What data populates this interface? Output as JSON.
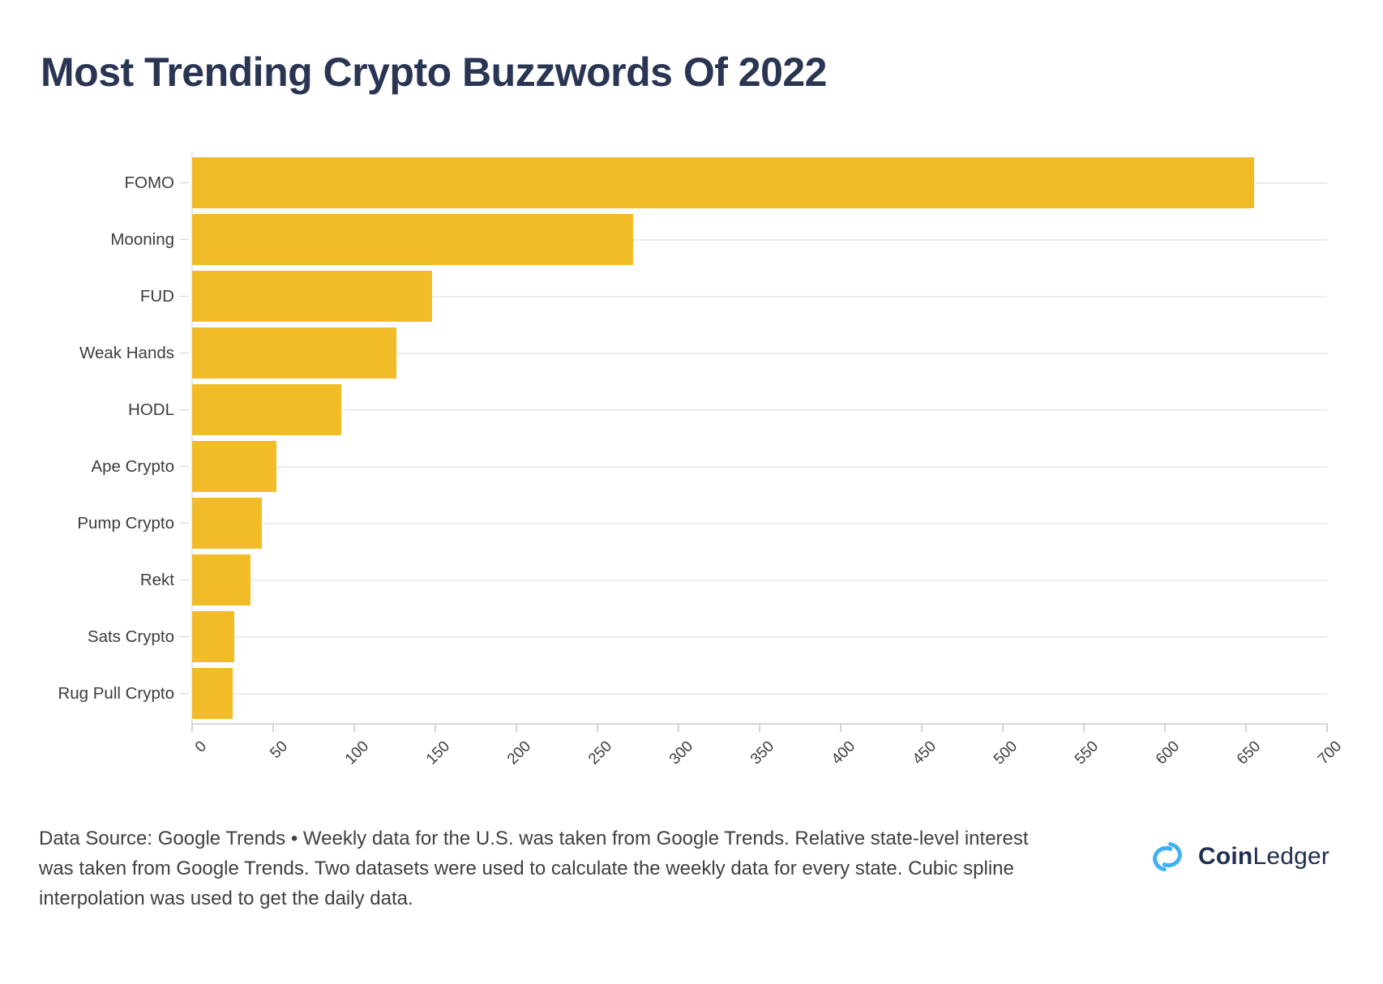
{
  "title": "Most Trending Crypto Buzzwords Of 2022",
  "chart_data": {
    "type": "bar",
    "orientation": "horizontal",
    "title": "Most Trending Crypto Buzzwords Of 2022",
    "categories": [
      "FOMO",
      "Mooning",
      "FUD",
      "Weak Hands",
      "HODL",
      "Ape Crypto",
      "Pump Crypto",
      "Rekt",
      "Sats Crypto",
      "Rug Pull Crypto"
    ],
    "values": [
      655,
      272,
      148,
      126,
      92,
      52,
      43,
      36,
      26,
      25
    ],
    "xlabel": "",
    "ylabel": "",
    "xlim": [
      0,
      700
    ],
    "x_ticks": [
      0,
      50,
      100,
      150,
      200,
      250,
      300,
      350,
      400,
      450,
      500,
      550,
      600,
      650,
      700
    ],
    "grid": "horizontal-only",
    "legend": "none",
    "bar_color": "#F2BC29"
  },
  "footer": {
    "lines": [
      "Data Source: Google Trends • Weekly data for the U.S. was taken from Google Trends. Relative state-level interest",
      "was taken from Google Trends. Two datasets were used to calculate the weekly data for every state. Cubic spline",
      "interpolation was used to get the daily data."
    ],
    "full_text": "Data Source: Google Trends • Weekly data for the U.S. was taken from Google Trends. Relative state-level interest was taken from Google Trends. Two datasets were used to calculate the weekly data for every state. Cubic spline interpolation was used to get the daily data."
  },
  "logo": {
    "part1": "Coin",
    "part2": "Ledger",
    "icon": "coinledger-knot-icon",
    "icon_color": "#41B1F1",
    "text_color": "#202F50"
  },
  "appearance": {
    "title_color": "#2A3553",
    "axis_text_color": "#3E3E3E",
    "gridline_color": "#ECECEC",
    "background_color": "#FFFFFF"
  }
}
